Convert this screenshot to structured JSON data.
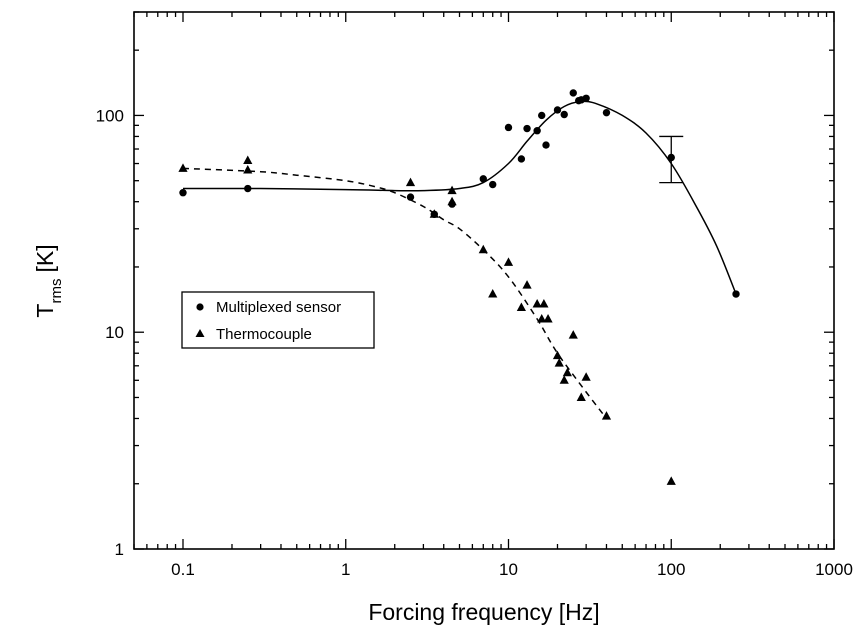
{
  "chart_data": {
    "type": "scatter",
    "xlabel": "Forcing frequency [Hz]",
    "ylabel": {
      "main": "T",
      "sub": "rms",
      "unit": "[K]"
    },
    "x_scale": "log",
    "y_scale": "log",
    "xlim": [
      0.05,
      1000
    ],
    "ylim": [
      1,
      300
    ],
    "x_ticks": [
      {
        "value": 0.1,
        "label": "0.1"
      },
      {
        "value": 1,
        "label": "1"
      },
      {
        "value": 10,
        "label": "10"
      },
      {
        "value": 100,
        "label": "100"
      },
      {
        "value": 1000,
        "label": "1000"
      }
    ],
    "y_ticks": [
      {
        "value": 1,
        "label": "1"
      },
      {
        "value": 10,
        "label": "10"
      },
      {
        "value": 100,
        "label": "100"
      }
    ],
    "legend": {
      "position": "center-left",
      "entries": [
        {
          "marker": "circle",
          "label": "Multiplexed sensor"
        },
        {
          "marker": "triangle",
          "label": "Thermocouple"
        }
      ]
    },
    "series": [
      {
        "name": "Multiplexed sensor",
        "marker": "circle",
        "points": [
          [
            0.1,
            44
          ],
          [
            0.25,
            46
          ],
          [
            2.5,
            42
          ],
          [
            3.5,
            35
          ],
          [
            4.5,
            39
          ],
          [
            7,
            51
          ],
          [
            8,
            48
          ],
          [
            10,
            88
          ],
          [
            12,
            63
          ],
          [
            13,
            87
          ],
          [
            15,
            85
          ],
          [
            16,
            100
          ],
          [
            17,
            73
          ],
          [
            20,
            106
          ],
          [
            22,
            101
          ],
          [
            25,
            127
          ],
          [
            27,
            117
          ],
          [
            28,
            118
          ],
          [
            30,
            120
          ],
          [
            40,
            103
          ],
          [
            100,
            64
          ],
          [
            250,
            15
          ]
        ],
        "error_bars": [
          {
            "x": 100,
            "y": 64,
            "low": 49,
            "high": 80
          }
        ],
        "fit_curve": {
          "style": "solid",
          "points": [
            [
              0.1,
              46
            ],
            [
              0.3,
              46
            ],
            [
              1,
              45.5
            ],
            [
              2,
              45
            ],
            [
              3,
              45
            ],
            [
              5,
              46
            ],
            [
              7,
              49
            ],
            [
              10,
              60
            ],
            [
              13,
              76
            ],
            [
              17,
              95
            ],
            [
              22,
              110
            ],
            [
              28,
              116
            ],
            [
              35,
              113
            ],
            [
              50,
              100
            ],
            [
              70,
              83
            ],
            [
              100,
              60
            ],
            [
              140,
              39
            ],
            [
              190,
              25
            ],
            [
              250,
              15
            ]
          ]
        }
      },
      {
        "name": "Thermocouple",
        "marker": "triangle",
        "points": [
          [
            0.1,
            57
          ],
          [
            0.25,
            62
          ],
          [
            0.25,
            56
          ],
          [
            2.5,
            49
          ],
          [
            3.5,
            35
          ],
          [
            4.5,
            45
          ],
          [
            4.5,
            40
          ],
          [
            7,
            24
          ],
          [
            8,
            15
          ],
          [
            10,
            21
          ],
          [
            12,
            13
          ],
          [
            13,
            16.5
          ],
          [
            15,
            13.5
          ],
          [
            16,
            11.5
          ],
          [
            16.5,
            13.5
          ],
          [
            17.5,
            11.5
          ],
          [
            20,
            7.8
          ],
          [
            20.5,
            7.2
          ],
          [
            22,
            6
          ],
          [
            23,
            6.5
          ],
          [
            25,
            9.7
          ],
          [
            28,
            5
          ],
          [
            30,
            6.2
          ],
          [
            40,
            4.1
          ],
          [
            100,
            2.05
          ]
        ],
        "fit_curve": {
          "style": "dashed",
          "points": [
            [
              0.1,
              57
            ],
            [
              0.3,
              55
            ],
            [
              0.5,
              53
            ],
            [
              1,
              50
            ],
            [
              1.5,
              47
            ],
            [
              2,
              44
            ],
            [
              3,
              38
            ],
            [
              4,
              33
            ],
            [
              5,
              30
            ],
            [
              7,
              24
            ],
            [
              10,
              18
            ],
            [
              15,
              11.5
            ],
            [
              20,
              8
            ],
            [
              30,
              5.3
            ],
            [
              40,
              4
            ]
          ]
        }
      }
    ]
  }
}
